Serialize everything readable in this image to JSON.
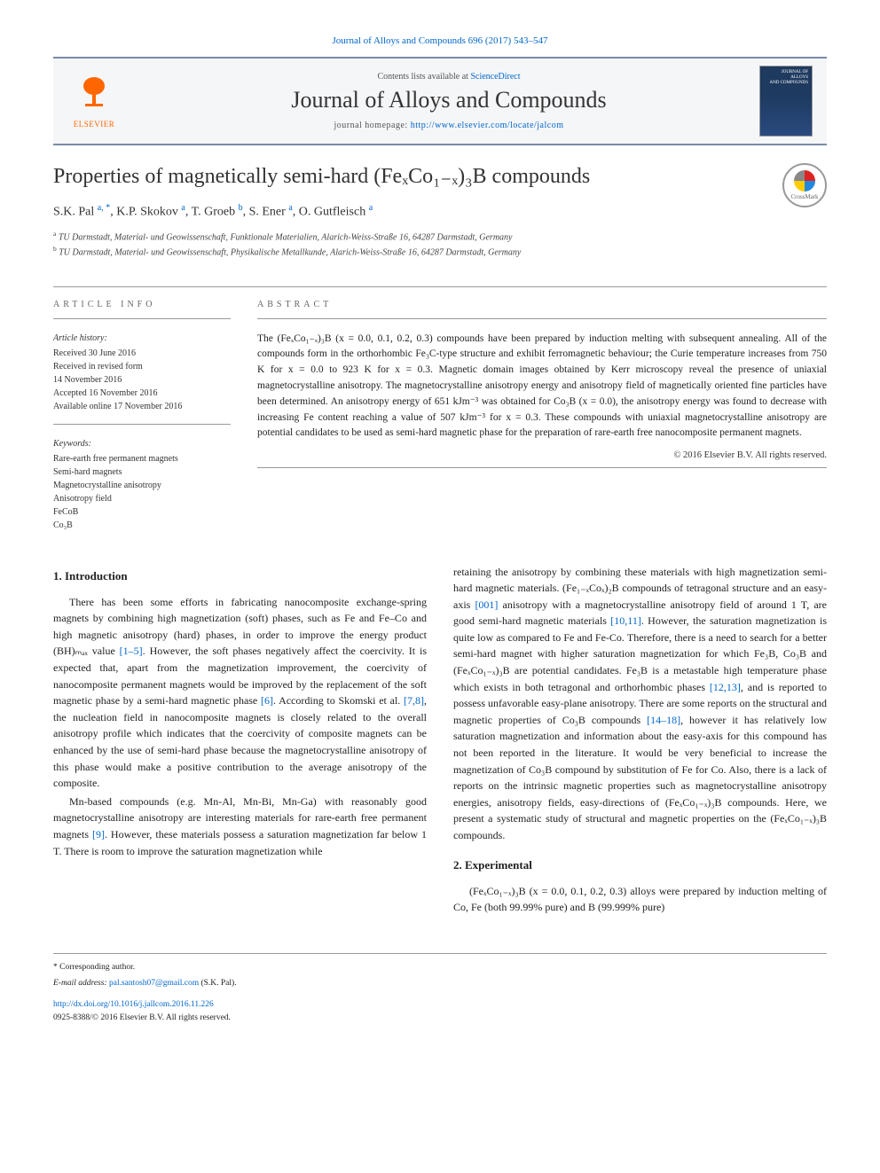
{
  "citation": "Journal of Alloys and Compounds 696 (2017) 543–547",
  "header": {
    "publisher": "ELSEVIER",
    "contents_prefix": "Contents lists available at ",
    "contents_link": "ScienceDirect",
    "journal_name": "Journal of Alloys and Compounds",
    "homepage_prefix": "journal homepage: ",
    "homepage_url": "http://www.elsevier.com/locate/jalcom",
    "cover_line1": "JOURNAL OF",
    "cover_line2": "ALLOYS",
    "cover_line3": "AND COMPOUNDS"
  },
  "crossmark_label": "CrossMark",
  "title": "Properties of magnetically semi-hard (FeₓCo₁₋ₓ)₃B compounds",
  "authors_html": "S.K. Pal <sup>a, *</sup>, K.P. Skokov <sup>a</sup>, T. Groeb <sup>b</sup>, S. Ener <sup>a</sup>, O. Gutfleisch <sup>a</sup>",
  "affiliations": {
    "a": "TU Darmstadt, Material- und Geowissenschaft, Funktionale Materialien, Alarich-Weiss-Straße 16, 64287 Darmstadt, Germany",
    "b": "TU Darmstadt, Material- und Geowissenschaft, Physikalische Metallkunde, Alarich-Weiss-Straße 16, 64287 Darmstadt, Germany"
  },
  "article_info": {
    "heading": "ARTICLE INFO",
    "history_label": "Article history:",
    "history": [
      "Received 30 June 2016",
      "Received in revised form",
      "14 November 2016",
      "Accepted 16 November 2016",
      "Available online 17 November 2016"
    ],
    "keywords_label": "Keywords:",
    "keywords": [
      "Rare-earth free permanent magnets",
      "Semi-hard magnets",
      "Magnetocrystalline anisotropy",
      "Anisotropy field",
      "FeCoB",
      "Co₃B"
    ]
  },
  "abstract": {
    "heading": "ABSTRACT",
    "text": "The (FeₓCo₁₋ₓ)₃B (x = 0.0, 0.1, 0.2, 0.3) compounds have been prepared by induction melting with subsequent annealing. All of the compounds form in the orthorhombic Fe₃C-type structure and exhibit ferromagnetic behaviour; the Curie temperature increases from 750 K for x = 0.0 to 923 K for x = 0.3. Magnetic domain images obtained by Kerr microscopy reveal the presence of uniaxial magnetocrystalline anisotropy. The magnetocrystalline anisotropy energy and anisotropy field of magnetically oriented fine particles have been determined. An anisotropy energy of 651 kJm⁻³ was obtained for Co₃B (x = 0.0), the anisotropy energy was found to decrease with increasing Fe content reaching a value of 507 kJm⁻³ for x = 0.3. These compounds with uniaxial magnetocrystalline anisotropy are potential candidates to be used as semi-hard magnetic phase for the preparation of rare-earth free nanocomposite permanent magnets.",
    "copyright": "© 2016 Elsevier B.V. All rights reserved."
  },
  "sections": {
    "intro_heading": "1. Introduction",
    "intro_p1": "There has been some efforts in fabricating nanocomposite exchange-spring magnets by combining high magnetization (soft) phases, such as Fe and Fe–Co and high magnetic anisotropy (hard) phases, in order to improve the energy product (BH)ₘₐₓ value [1–5]. However, the soft phases negatively affect the coercivity. It is expected that, apart from the magnetization improvement, the coercivity of nanocomposite permanent magnets would be improved by the replacement of the soft magnetic phase by a semi-hard magnetic phase [6]. According to Skomski et al. [7,8], the nucleation field in nanocomposite magnets is closely related to the overall anisotropy profile which indicates that the coercivity of composite magnets can be enhanced by the use of semi-hard phase because the magnetocrystalline anisotropy of this phase would make a positive contribution to the average anisotropy of the composite.",
    "intro_p2": "Mn-based compounds (e.g. Mn-Al, Mn-Bi, Mn-Ga) with reasonably good magnetocrystalline anisotropy are interesting materials for rare-earth free permanent magnets [9]. However, these materials possess a saturation magnetization far below 1 T. There is room to improve the saturation magnetization while",
    "intro_p3": "retaining the anisotropy by combining these materials with high magnetization semi-hard magnetic materials. (Fe₁₋ₓCoₓ)₂B compounds of tetragonal structure and an easy-axis [001] anisotropy with a magnetocrystalline anisotropy field of around 1 T, are good semi-hard magnetic materials [10,11]. However, the saturation magnetization is quite low as compared to Fe and Fe-Co. Therefore, there is a need to search for a better semi-hard magnet with higher saturation magnetization for which Fe₃B, Co₃B and (FeₓCo₁₋ₓ)₃B are potential candidates. Fe₃B is a metastable high temperature phase which exists in both tetragonal and orthorhombic phases [12,13], and is reported to possess unfavorable easy-plane anisotropy. There are some reports on the structural and magnetic properties of Co₃B compounds [14–18], however it has relatively low saturation magnetization and information about the easy-axis for this compound has not been reported in the literature. It would be very beneficial to increase the magnetization of Co₃B compound by substitution of Fe for Co. Also, there is a lack of reports on the intrinsic magnetic properties such as magnetocrystalline anisotropy energies, anisotropy fields, easy-directions of (FeₓCo₁₋ₓ)₃B compounds. Here, we present a systematic study of structural and magnetic properties on the (FeₓCo₁₋ₓ)₃B compounds.",
    "exp_heading": "2. Experimental",
    "exp_p1": "(FeₓCo₁₋ₓ)₃B (x = 0.0, 0.1, 0.2, 0.3) alloys were prepared by induction melting of Co, Fe (both 99.99% pure) and B (99.999% pure)"
  },
  "footer": {
    "corresp_label": "* Corresponding author.",
    "email_label": "E-mail address:",
    "email": "pal.santosh07@gmail.com",
    "email_name": "(S.K. Pal).",
    "doi": "http://dx.doi.org/10.1016/j.jallcom.2016.11.226",
    "issn_line": "0925-8388/© 2016 Elsevier B.V. All rights reserved."
  },
  "colors": {
    "link": "#0066cc",
    "border": "#7a8aa8",
    "orange": "#ff6600"
  }
}
